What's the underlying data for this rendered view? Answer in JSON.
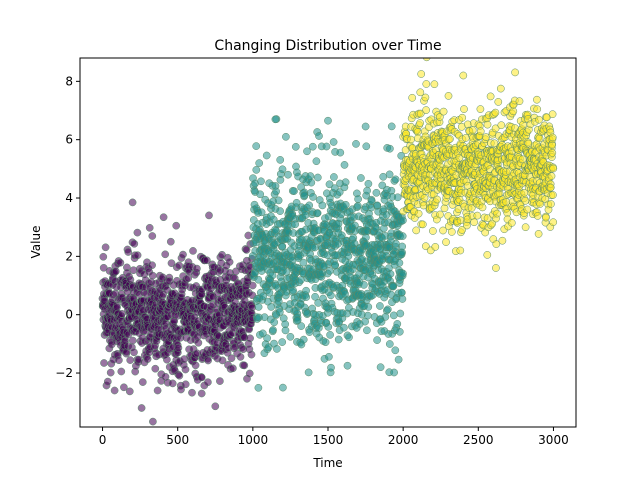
{
  "chart_data": {
    "type": "scatter",
    "title": "Changing Distribution over Time",
    "xlabel": "Time",
    "ylabel": "Value",
    "xlim": [
      -150,
      3150
    ],
    "ylim": [
      -3.85,
      8.8
    ],
    "xticks": [
      0,
      500,
      1000,
      1500,
      2000,
      2500,
      3000
    ],
    "yticks": [
      -2,
      0,
      2,
      4,
      6,
      8
    ],
    "ytick_labels": [
      "−2",
      "0",
      "2",
      "4",
      "6",
      "8"
    ],
    "grid": false,
    "legend": "none",
    "colors": {
      "segment_1": "#440154",
      "segment_2": "#21918c",
      "segment_3": "#fde725",
      "edge": "#5a8a6a",
      "marker_fill": "#4f7f6b"
    },
    "series": [
      {
        "x_range": [
          0,
          999
        ],
        "distribution": "normal",
        "mean": 0,
        "std": 1,
        "point_count": 1000,
        "color": "#440154",
        "notable_points": [
          {
            "x": 200,
            "y": 3.85
          },
          {
            "x": 490,
            "y": 3.05
          },
          {
            "x": 260,
            "y": -3.2
          },
          {
            "x": 660,
            "y": -2.7
          },
          {
            "x": 80,
            "y": -2.6
          }
        ]
      },
      {
        "x_range": [
          1000,
          1999
        ],
        "distribution": "normal",
        "mean": 2,
        "std": 1.5,
        "point_count": 1000,
        "color": "#21918c",
        "notable_points": [
          {
            "x": 1150,
            "y": 6.7
          },
          {
            "x": 1500,
            "y": 6.65
          },
          {
            "x": 1750,
            "y": 6.45
          },
          {
            "x": 1220,
            "y": 6.1
          },
          {
            "x": 1850,
            "y": -1.8
          },
          {
            "x": 1630,
            "y": -1.75
          },
          {
            "x": 1200,
            "y": -2.5
          }
        ]
      },
      {
        "x_range": [
          2000,
          2999
        ],
        "distribution": "normal",
        "mean": 5,
        "std": 1,
        "point_count": 1000,
        "color": "#fde725",
        "notable_points": [
          {
            "x": 2120,
            "y": 8.25
          },
          {
            "x": 2400,
            "y": 8.2
          },
          {
            "x": 2650,
            "y": 7.75
          },
          {
            "x": 2380,
            "y": 2.2
          },
          {
            "x": 2560,
            "y": 2.05
          }
        ]
      }
    ]
  }
}
